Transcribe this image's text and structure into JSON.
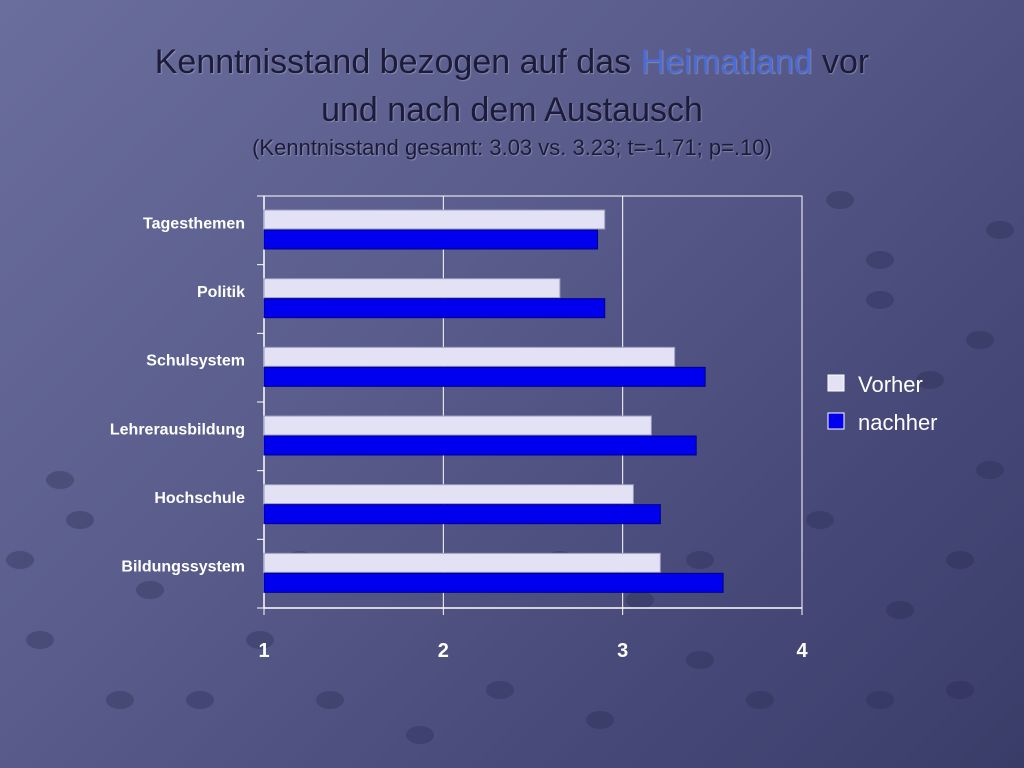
{
  "title": {
    "line1_a": "Kenntnisstand bezogen auf das ",
    "line1_highlight": "Heimatland",
    "line1_b": " vor",
    "line2": "und nach dem Austausch",
    "subtitle": "(Kenntnisstand gesamt: 3.03 vs. 3.23; t=-1,71; p=.10)"
  },
  "colors": {
    "vorher": "#e2e2f4",
    "nachher": "#0000ee",
    "highlight": "#4a6cd4",
    "axis": "#ffffff"
  },
  "chart_data": {
    "type": "bar",
    "orientation": "horizontal",
    "categories": [
      "Tagesthemen",
      "Politik",
      "Schulsystem",
      "Lehrerausbildung",
      "Hochschule",
      "Bildungssystem"
    ],
    "series": [
      {
        "name": "Vorher",
        "values": [
          2.9,
          2.65,
          3.29,
          3.16,
          3.06,
          3.21
        ]
      },
      {
        "name": "nachher",
        "values": [
          2.86,
          2.9,
          3.46,
          3.41,
          3.21,
          3.56
        ]
      }
    ],
    "xlim": [
      1,
      4
    ],
    "xticks": [
      "1",
      "2",
      "3",
      "4"
    ],
    "grid": true,
    "legend": "right"
  }
}
